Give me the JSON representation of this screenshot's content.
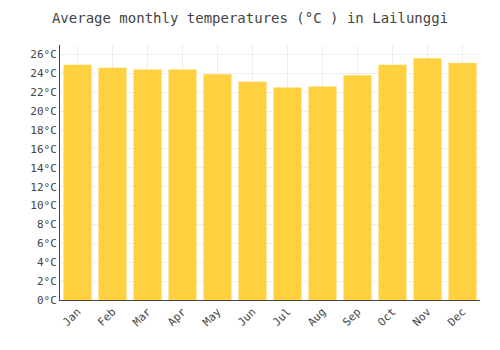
{
  "chart_data": {
    "type": "bar",
    "title": "Average monthly temperatures (°C ) in Lailunggi",
    "categories": [
      "Jan",
      "Feb",
      "Mar",
      "Apr",
      "May",
      "Jun",
      "Jul",
      "Aug",
      "Sep",
      "Oct",
      "Nov",
      "Dec"
    ],
    "values": [
      24.9,
      24.6,
      24.4,
      24.4,
      23.9,
      23.1,
      22.5,
      22.6,
      23.8,
      24.9,
      25.6,
      25.1
    ],
    "color": "#FFD040",
    "ylim": [
      0,
      27
    ],
    "yticks": [
      {
        "value": 0,
        "label": "0°C"
      },
      {
        "value": 2,
        "label": "2°C"
      },
      {
        "value": 4,
        "label": "4°C"
      },
      {
        "value": 6,
        "label": "6°C"
      },
      {
        "value": 8,
        "label": "8°C"
      },
      {
        "value": 10,
        "label": "10°C"
      },
      {
        "value": 12,
        "label": "12°C"
      },
      {
        "value": 14,
        "label": "14°C"
      },
      {
        "value": 16,
        "label": "16°C"
      },
      {
        "value": 18,
        "label": "18°C"
      },
      {
        "value": 20,
        "label": "20°C"
      },
      {
        "value": 22,
        "label": "22°C"
      },
      {
        "value": 24,
        "label": "24°C"
      },
      {
        "value": 26,
        "label": "26°C"
      }
    ],
    "grid": true
  }
}
